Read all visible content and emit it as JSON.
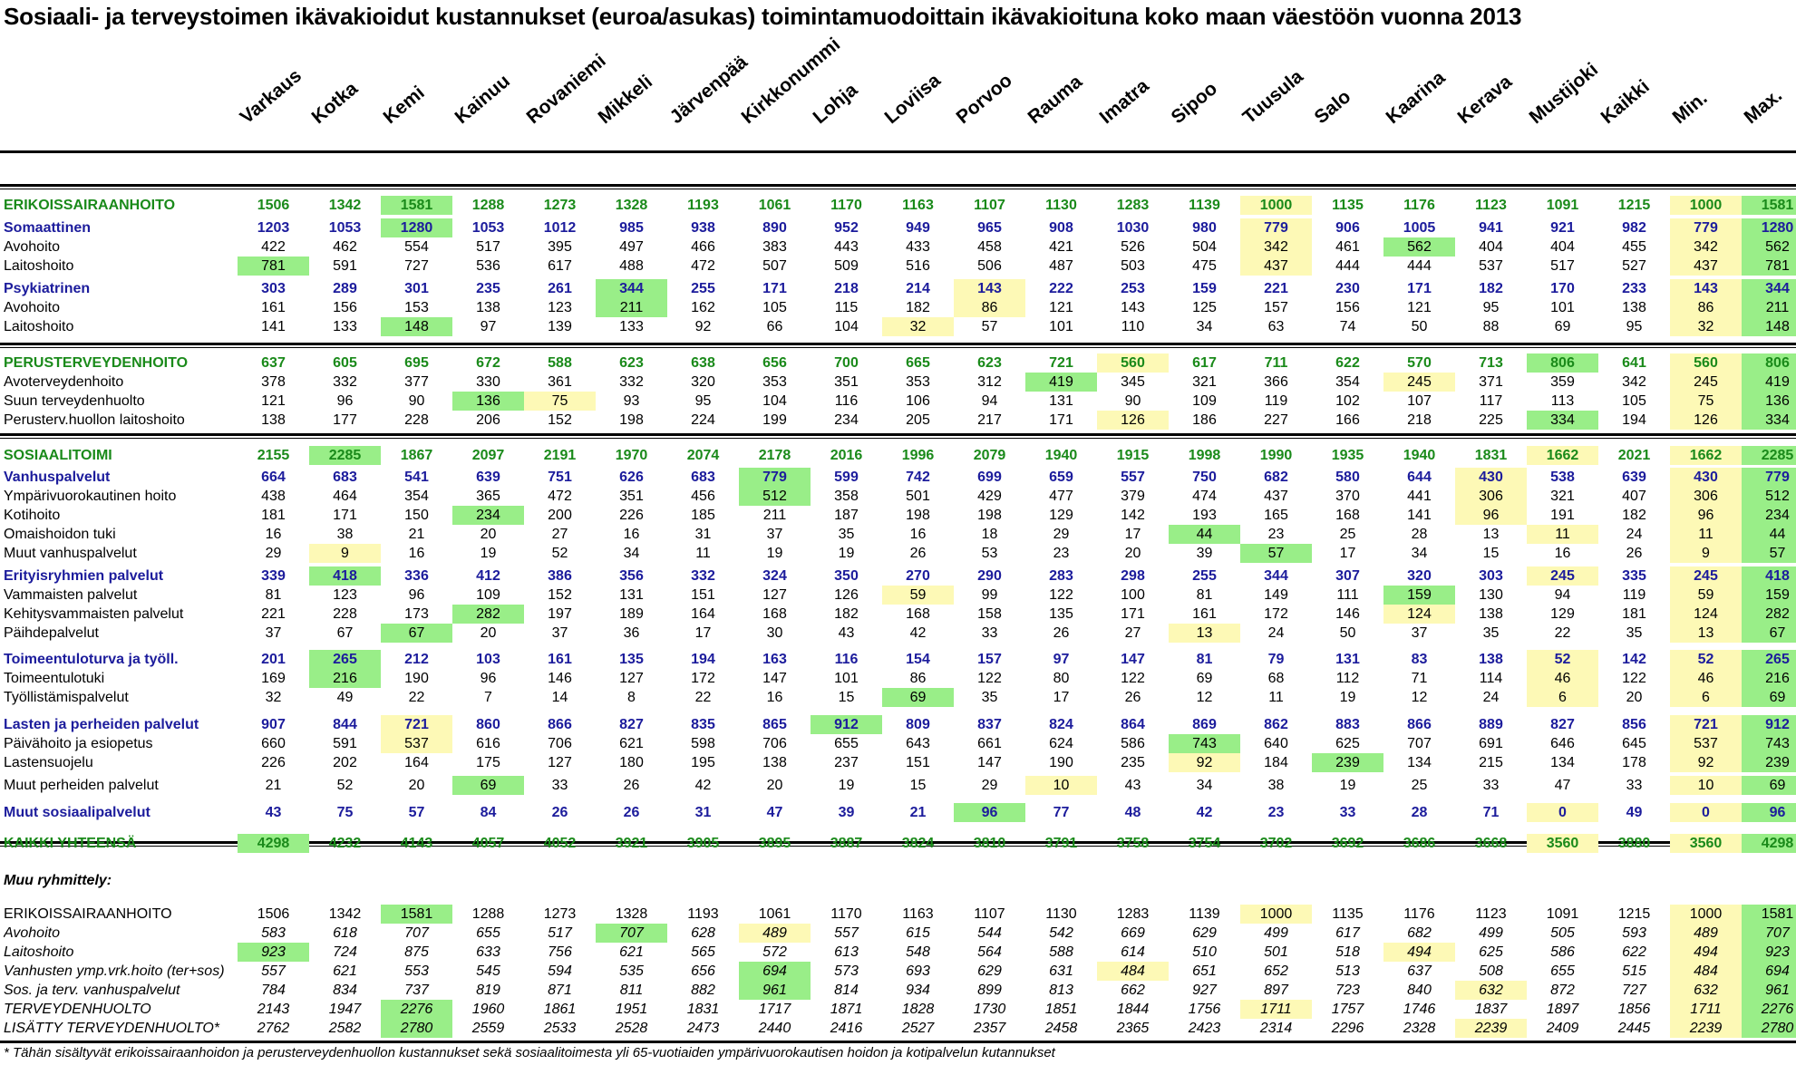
{
  "title": "Sosiaali- ja terveystoimen ikävakioidut kustannukset (euroa/asukas) toimintamuodoittain ikävakioituna koko maan väestöön vuonna 2013",
  "columns": [
    "Varkaus",
    "Kotka",
    "Kemi",
    "Kainuu",
    "Rovaniemi",
    "Mikkeli",
    "Järvenpää",
    "Kirkkonummi",
    "Lohja",
    "Loviisa",
    "Porvoo",
    "Rauma",
    "Imatra",
    "Sipoo",
    "Tuusula",
    "Salo",
    "Kaarina",
    "Kerava",
    "Mustijoki",
    "Kaikki",
    "Min.",
    "Max."
  ],
  "colors": {
    "green_highlight": "#99ee88",
    "yellow_highlight": "#fdf9b6",
    "section_green": "#1a8a1a",
    "section_blue": "#1c1c9c"
  },
  "rows": [
    {
      "label": "ERIKOISSAIRAANHOITO",
      "style": "section",
      "values": [
        "1506",
        "1342",
        "1581",
        "1288",
        "1273",
        "1328",
        "1193",
        "1061",
        "1170",
        "1163",
        "1107",
        "1130",
        "1283",
        "1139",
        "1000",
        "1135",
        "1176",
        "1123",
        "1091",
        "1215",
        "1000",
        "1581"
      ],
      "green": [
        2
      ],
      "yellow": [
        14
      ]
    },
    {
      "label": "Somaattinen",
      "style": "group",
      "values": [
        "1203",
        "1053",
        "1280",
        "1053",
        "1012",
        "985",
        "938",
        "890",
        "952",
        "949",
        "965",
        "908",
        "1030",
        "980",
        "779",
        "906",
        "1005",
        "941",
        "921",
        "982",
        "779",
        "1280"
      ],
      "green": [
        2
      ],
      "yellow": [
        14
      ]
    },
    {
      "label": "Avohoito",
      "style": "item",
      "values": [
        "422",
        "462",
        "554",
        "517",
        "395",
        "497",
        "466",
        "383",
        "443",
        "433",
        "458",
        "421",
        "526",
        "504",
        "342",
        "461",
        "562",
        "404",
        "404",
        "455",
        "342",
        "562"
      ],
      "green": [
        16
      ],
      "yellow": [
        14
      ]
    },
    {
      "label": "Laitoshoito",
      "style": "item",
      "values": [
        "781",
        "591",
        "727",
        "536",
        "617",
        "488",
        "472",
        "507",
        "509",
        "516",
        "506",
        "487",
        "503",
        "475",
        "437",
        "444",
        "444",
        "537",
        "517",
        "527",
        "437",
        "781"
      ],
      "green": [
        0
      ],
      "yellow": [
        14
      ]
    },
    {
      "label": "Psykiatrinen",
      "style": "group",
      "values": [
        "303",
        "289",
        "301",
        "235",
        "261",
        "344",
        "255",
        "171",
        "218",
        "214",
        "143",
        "222",
        "253",
        "159",
        "221",
        "230",
        "171",
        "182",
        "170",
        "233",
        "143",
        "344"
      ],
      "green": [
        5
      ],
      "yellow": [
        10
      ]
    },
    {
      "label": "Avohoito",
      "style": "item",
      "values": [
        "161",
        "156",
        "153",
        "138",
        "123",
        "211",
        "162",
        "105",
        "115",
        "182",
        "86",
        "121",
        "143",
        "125",
        "157",
        "156",
        "121",
        "95",
        "101",
        "138",
        "86",
        "211"
      ],
      "green": [
        5
      ],
      "yellow": [
        10
      ]
    },
    {
      "label": "Laitoshoito",
      "style": "item",
      "values": [
        "141",
        "133",
        "148",
        "97",
        "139",
        "133",
        "92",
        "66",
        "104",
        "32",
        "57",
        "101",
        "110",
        "34",
        "63",
        "74",
        "50",
        "88",
        "69",
        "95",
        "32",
        "148"
      ],
      "green": [
        2
      ],
      "yellow": [
        9
      ]
    },
    {
      "label": "PERUSTERVEYDENHOITO",
      "style": "section",
      "values": [
        "637",
        "605",
        "695",
        "672",
        "588",
        "623",
        "638",
        "656",
        "700",
        "665",
        "623",
        "721",
        "560",
        "617",
        "711",
        "622",
        "570",
        "713",
        "806",
        "641",
        "560",
        "806"
      ],
      "green": [
        18
      ],
      "yellow": [
        12
      ]
    },
    {
      "label": "Avoterveydenhoito",
      "style": "item",
      "values": [
        "378",
        "332",
        "377",
        "330",
        "361",
        "332",
        "320",
        "353",
        "351",
        "353",
        "312",
        "419",
        "345",
        "321",
        "366",
        "354",
        "245",
        "371",
        "359",
        "342",
        "245",
        "419"
      ],
      "green": [
        11
      ],
      "yellow": [
        16
      ]
    },
    {
      "label": "Suun terveydenhuolto",
      "style": "item",
      "values": [
        "121",
        "96",
        "90",
        "136",
        "75",
        "93",
        "95",
        "104",
        "116",
        "106",
        "94",
        "131",
        "90",
        "109",
        "119",
        "102",
        "107",
        "117",
        "113",
        "105",
        "75",
        "136"
      ],
      "green": [
        3
      ],
      "yellow": [
        4
      ]
    },
    {
      "label": "Perusterv.huollon laitoshoito",
      "style": "item",
      "values": [
        "138",
        "177",
        "228",
        "206",
        "152",
        "198",
        "224",
        "199",
        "234",
        "205",
        "217",
        "171",
        "126",
        "186",
        "227",
        "166",
        "218",
        "225",
        "334",
        "194",
        "126",
        "334"
      ],
      "green": [
        18
      ],
      "yellow": [
        12
      ]
    },
    {
      "label": "SOSIAALITOIMI",
      "style": "section",
      "values": [
        "2155",
        "2285",
        "1867",
        "2097",
        "2191",
        "1970",
        "2074",
        "2178",
        "2016",
        "1996",
        "2079",
        "1940",
        "1915",
        "1998",
        "1990",
        "1935",
        "1940",
        "1831",
        "1662",
        "2021",
        "1662",
        "2285"
      ],
      "green": [
        1
      ],
      "yellow": [
        18
      ]
    },
    {
      "label": "Vanhuspalvelut",
      "style": "group",
      "values": [
        "664",
        "683",
        "541",
        "639",
        "751",
        "626",
        "683",
        "779",
        "599",
        "742",
        "699",
        "659",
        "557",
        "750",
        "682",
        "580",
        "644",
        "430",
        "538",
        "639",
        "430",
        "779"
      ],
      "green": [
        7
      ],
      "yellow": [
        17
      ]
    },
    {
      "label": "Ympärivuorokautinen hoito",
      "style": "item",
      "values": [
        "438",
        "464",
        "354",
        "365",
        "472",
        "351",
        "456",
        "512",
        "358",
        "501",
        "429",
        "477",
        "379",
        "474",
        "437",
        "370",
        "441",
        "306",
        "321",
        "407",
        "306",
        "512"
      ],
      "green": [
        7
      ],
      "yellow": [
        17
      ]
    },
    {
      "label": "Kotihoito",
      "style": "item",
      "values": [
        "181",
        "171",
        "150",
        "234",
        "200",
        "226",
        "185",
        "211",
        "187",
        "198",
        "198",
        "129",
        "142",
        "193",
        "165",
        "168",
        "141",
        "96",
        "191",
        "182",
        "96",
        "234"
      ],
      "green": [
        3
      ],
      "yellow": [
        17
      ]
    },
    {
      "label": "Omaishoidon tuki",
      "style": "item",
      "values": [
        "16",
        "38",
        "21",
        "20",
        "27",
        "16",
        "31",
        "37",
        "35",
        "16",
        "18",
        "29",
        "17",
        "44",
        "23",
        "25",
        "28",
        "13",
        "11",
        "24",
        "11",
        "44"
      ],
      "green": [
        13
      ],
      "yellow": [
        18
      ]
    },
    {
      "label": "Muut vanhuspalvelut",
      "style": "item",
      "values": [
        "29",
        "9",
        "16",
        "19",
        "52",
        "34",
        "11",
        "19",
        "19",
        "26",
        "53",
        "23",
        "20",
        "39",
        "57",
        "17",
        "34",
        "15",
        "16",
        "26",
        "9",
        "57"
      ],
      "green": [
        14
      ],
      "yellow": [
        1
      ]
    },
    {
      "label": "Erityisryhmien palvelut",
      "style": "group",
      "values": [
        "339",
        "418",
        "336",
        "412",
        "386",
        "356",
        "332",
        "324",
        "350",
        "270",
        "290",
        "283",
        "298",
        "255",
        "344",
        "307",
        "320",
        "303",
        "245",
        "335",
        "245",
        "418"
      ],
      "green": [
        1
      ],
      "yellow": [
        18
      ]
    },
    {
      "label": "Vammaisten palvelut",
      "style": "item",
      "values": [
        "81",
        "123",
        "96",
        "109",
        "152",
        "131",
        "151",
        "127",
        "126",
        "59",
        "99",
        "122",
        "100",
        "81",
        "149",
        "111",
        "159",
        "130",
        "94",
        "119",
        "59",
        "159"
      ],
      "green": [
        16
      ],
      "yellow": [
        9
      ]
    },
    {
      "label": "Kehitysvammaisten palvelut",
      "style": "item",
      "values": [
        "221",
        "228",
        "173",
        "282",
        "197",
        "189",
        "164",
        "168",
        "182",
        "168",
        "158",
        "135",
        "171",
        "161",
        "172",
        "146",
        "124",
        "138",
        "129",
        "181",
        "124",
        "282"
      ],
      "green": [
        3
      ],
      "yellow": [
        16
      ]
    },
    {
      "label": "Päihdepalvelut",
      "style": "item",
      "values": [
        "37",
        "67",
        "67",
        "20",
        "37",
        "36",
        "17",
        "30",
        "43",
        "42",
        "33",
        "26",
        "27",
        "13",
        "24",
        "50",
        "37",
        "35",
        "22",
        "35",
        "13",
        "67"
      ],
      "green": [
        2
      ],
      "yellow": [
        13
      ]
    },
    {
      "label": "Toimeentuloturva ja työll.",
      "style": "group",
      "values": [
        "201",
        "265",
        "212",
        "103",
        "161",
        "135",
        "194",
        "163",
        "116",
        "154",
        "157",
        "97",
        "147",
        "81",
        "79",
        "131",
        "83",
        "138",
        "52",
        "142",
        "52",
        "265"
      ],
      "green": [
        1
      ],
      "yellow": [
        18
      ]
    },
    {
      "label": "Toimeentulotuki",
      "style": "item",
      "values": [
        "169",
        "216",
        "190",
        "96",
        "146",
        "127",
        "172",
        "147",
        "101",
        "86",
        "122",
        "80",
        "122",
        "69",
        "68",
        "112",
        "71",
        "114",
        "46",
        "122",
        "46",
        "216"
      ],
      "green": [
        1
      ],
      "yellow": [
        18
      ]
    },
    {
      "label": "Työllistämispalvelut",
      "style": "item",
      "values": [
        "32",
        "49",
        "22",
        "7",
        "14",
        "8",
        "22",
        "16",
        "15",
        "69",
        "35",
        "17",
        "26",
        "12",
        "11",
        "19",
        "12",
        "24",
        "6",
        "20",
        "6",
        "69"
      ],
      "green": [
        9
      ],
      "yellow": [
        18
      ]
    },
    {
      "label": "Lasten ja perheiden palvelut",
      "style": "group",
      "values": [
        "907",
        "844",
        "721",
        "860",
        "866",
        "827",
        "835",
        "865",
        "912",
        "809",
        "837",
        "824",
        "864",
        "869",
        "862",
        "883",
        "866",
        "889",
        "827",
        "856",
        "721",
        "912"
      ],
      "green": [
        8
      ],
      "yellow": [
        2
      ]
    },
    {
      "label": "Päivähoito ja esiopetus",
      "style": "item",
      "values": [
        "660",
        "591",
        "537",
        "616",
        "706",
        "621",
        "598",
        "706",
        "655",
        "643",
        "661",
        "624",
        "586",
        "743",
        "640",
        "625",
        "707",
        "691",
        "646",
        "645",
        "537",
        "743"
      ],
      "green": [
        13
      ],
      "yellow": [
        2
      ]
    },
    {
      "label": "Lastensuojelu",
      "style": "item",
      "values": [
        "226",
        "202",
        "164",
        "175",
        "127",
        "180",
        "195",
        "138",
        "237",
        "151",
        "147",
        "190",
        "235",
        "92",
        "184",
        "239",
        "134",
        "215",
        "134",
        "178",
        "92",
        "239"
      ],
      "green": [
        15
      ],
      "yellow": [
        13
      ]
    },
    {
      "label": "Muut perheiden palvelut",
      "style": "item",
      "values": [
        "21",
        "52",
        "20",
        "69",
        "33",
        "26",
        "42",
        "20",
        "19",
        "15",
        "29",
        "10",
        "43",
        "34",
        "38",
        "19",
        "25",
        "33",
        "47",
        "33",
        "10",
        "69"
      ],
      "green": [
        3
      ],
      "yellow": [
        11
      ]
    },
    {
      "label": "Muut sosiaalipalvelut",
      "style": "group",
      "values": [
        "43",
        "75",
        "57",
        "84",
        "26",
        "26",
        "31",
        "47",
        "39",
        "21",
        "96",
        "77",
        "48",
        "42",
        "23",
        "33",
        "28",
        "71",
        "0",
        "49",
        "0",
        "96"
      ],
      "green": [
        10
      ],
      "yellow": [
        18
      ]
    },
    {
      "label": "KAIKKI YHTEENSÄ",
      "style": "section",
      "values": [
        "4298",
        "4232",
        "4143",
        "4057",
        "4052",
        "3921",
        "3905",
        "3895",
        "3887",
        "3824",
        "3810",
        "3791",
        "3758",
        "3754",
        "3702",
        "3692",
        "3686",
        "3668",
        "3560",
        "3880",
        "3560",
        "4298"
      ],
      "green": [
        0
      ],
      "yellow": [
        18
      ]
    },
    {
      "label": "ERIKOISSAIRAANHOITO",
      "style": "plain",
      "values": [
        "1506",
        "1342",
        "1581",
        "1288",
        "1273",
        "1328",
        "1193",
        "1061",
        "1170",
        "1163",
        "1107",
        "1130",
        "1283",
        "1139",
        "1000",
        "1135",
        "1176",
        "1123",
        "1091",
        "1215",
        "1000",
        "1581"
      ],
      "green": [
        2
      ],
      "yellow": [
        14
      ]
    },
    {
      "label": "Avohoito",
      "style": "ital",
      "values": [
        "583",
        "618",
        "707",
        "655",
        "517",
        "707",
        "628",
        "489",
        "557",
        "615",
        "544",
        "542",
        "669",
        "629",
        "499",
        "617",
        "682",
        "499",
        "505",
        "593",
        "489",
        "707"
      ],
      "green": [
        5
      ],
      "yellow": [
        7
      ]
    },
    {
      "label": "Laitoshoito",
      "style": "ital",
      "values": [
        "923",
        "724",
        "875",
        "633",
        "756",
        "621",
        "565",
        "572",
        "613",
        "548",
        "564",
        "588",
        "614",
        "510",
        "501",
        "518",
        "494",
        "625",
        "586",
        "622",
        "494",
        "923"
      ],
      "green": [
        0
      ],
      "yellow": [
        16
      ]
    },
    {
      "label": "Vanhusten ymp.vrk.hoito (ter+sos)",
      "style": "ital",
      "values": [
        "557",
        "621",
        "553",
        "545",
        "594",
        "535",
        "656",
        "694",
        "573",
        "693",
        "629",
        "631",
        "484",
        "651",
        "652",
        "513",
        "637",
        "508",
        "655",
        "515",
        "484",
        "694"
      ],
      "green": [
        7
      ],
      "yellow": [
        12
      ]
    },
    {
      "label": "Sos. ja terv. vanhuspalvelut",
      "style": "ital",
      "values": [
        "784",
        "834",
        "737",
        "819",
        "871",
        "811",
        "882",
        "961",
        "814",
        "934",
        "899",
        "813",
        "662",
        "927",
        "897",
        "723",
        "840",
        "632",
        "872",
        "727",
        "632",
        "961"
      ],
      "green": [
        7
      ],
      "yellow": [
        17
      ]
    },
    {
      "label": "TERVEYDENHUOLTO",
      "style": "ital",
      "values": [
        "2143",
        "1947",
        "2276",
        "1960",
        "1861",
        "1951",
        "1831",
        "1717",
        "1871",
        "1828",
        "1730",
        "1851",
        "1844",
        "1756",
        "1711",
        "1757",
        "1746",
        "1837",
        "1897",
        "1856",
        "1711",
        "2276"
      ],
      "green": [
        2
      ],
      "yellow": [
        14
      ]
    },
    {
      "label": "LISÄTTY TERVEYDENHUOLTO*",
      "style": "ital",
      "values": [
        "2762",
        "2582",
        "2780",
        "2559",
        "2533",
        "2528",
        "2473",
        "2440",
        "2416",
        "2527",
        "2357",
        "2458",
        "2365",
        "2423",
        "2314",
        "2296",
        "2328",
        "2239",
        "2409",
        "2445",
        "2239",
        "2780"
      ],
      "green": [
        2
      ],
      "yellow": [
        17
      ]
    }
  ],
  "subheading": "Muu ryhmittely:",
  "footnote": "* Tähän sisältyvät erikoissairaanhoidon ja perusterveydenhuollon kustannukset sekä sosiaalitoimesta yli 65-vuotiaiden ympärivuorokautisen hoidon ja kotipalvelun kutannukset"
}
